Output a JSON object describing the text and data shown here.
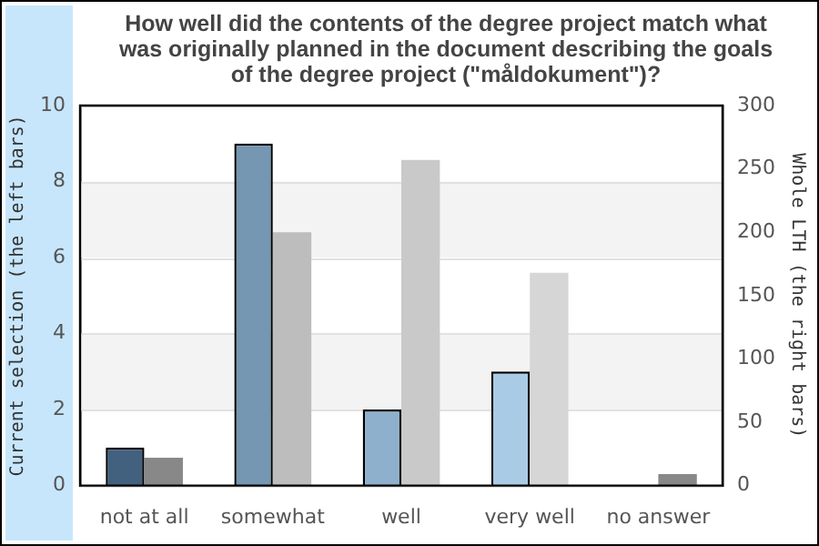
{
  "chart_data": {
    "type": "bar",
    "title": "How well did the contents of the degree project match what was originally planned in the document describing the goals of the degree project (\"måldokument\")?",
    "ylabel": "Current selection (the left bars)",
    "y2label": "Whole LTH (the right bars)",
    "categories": [
      "not at all",
      "somewhat",
      "well",
      "very well",
      "no answer"
    ],
    "series": [
      {
        "colors": [
          "#42617f",
          "#7597b2",
          "#8fb0cc",
          "#a9cbe6",
          "#a9cbe6"
        ],
        "values": [
          1,
          9,
          2,
          3,
          0
        ]
      },
      {
        "axis": "y2",
        "colors": [
          "#888888",
          "#bdbdbd",
          "#c9c9c9",
          "#d6d6d6",
          "#888888"
        ],
        "values": [
          22,
          200,
          257,
          168,
          9
        ]
      }
    ],
    "ylim": [
      0,
      10
    ],
    "yticks": [
      0,
      2,
      4,
      6,
      8,
      10
    ],
    "y2lim": [
      0,
      300
    ],
    "y2ticks": [
      0,
      50,
      100,
      150,
      200,
      250,
      300
    ],
    "grid": "y",
    "legend": false
  }
}
